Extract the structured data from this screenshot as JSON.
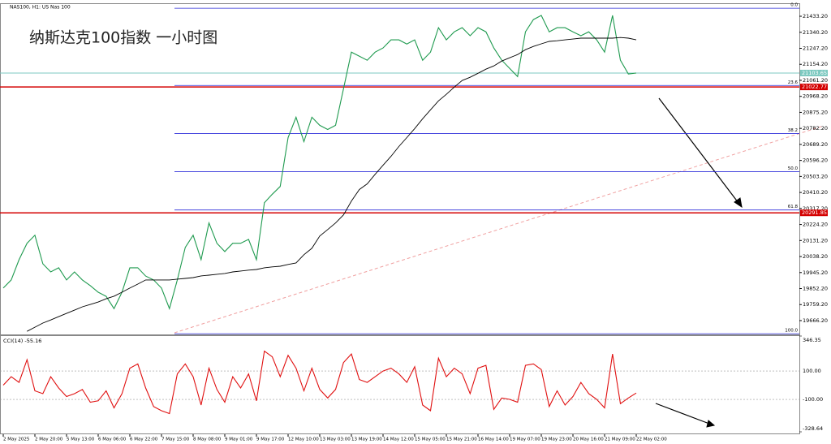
{
  "header": "NAS100, H1: US Nas 100",
  "annotation": "纳斯达克100指数 一小时图",
  "chart_data": [
    {
      "type": "line",
      "categories": [
        "2 May 2025",
        null,
        null,
        null,
        "2 May 20:00",
        null,
        null,
        null,
        "5 May 13:00",
        null,
        null,
        null,
        "6 May 06:00",
        null,
        null,
        null,
        "6 May 22:00",
        null,
        null,
        null,
        "7 May 15:00",
        null,
        null,
        null,
        "8 May 08:00",
        null,
        null,
        null,
        "9 May 01:00",
        null,
        null,
        null,
        "9 May 17:00",
        null,
        null,
        null,
        "12 May 10:00",
        null,
        null,
        null,
        "13 May 03:00",
        null,
        null,
        null,
        "13 May 19:00",
        null,
        null,
        null,
        "14 May 12:00",
        null,
        null,
        null,
        "15 May 05:00",
        null,
        null,
        null,
        "15 May 21:00",
        null,
        null,
        null,
        "16 May 14:00",
        null,
        null,
        null,
        "19 May 07:00",
        null,
        null,
        null,
        "19 May 23:00",
        null,
        null,
        null,
        "20 May 16:00",
        null,
        null,
        null,
        "21 May 09:00",
        null,
        null,
        null,
        "22 May 02:00"
      ],
      "series": [
        {
          "color": "#1f9a4f",
          "values": [
            19855,
            19902,
            20020,
            20115,
            20162,
            19996,
            19949,
            19973,
            19902,
            19949,
            19902,
            19869,
            19831,
            19807,
            19736,
            19831,
            19973,
            19973,
            19925,
            19902,
            19855,
            19736,
            19902,
            20091,
            20162,
            20020,
            20233,
            20115,
            20067,
            20115,
            20115,
            20138,
            20020,
            20351,
            20400,
            20445,
            20729,
            20847,
            20705,
            20847,
            20800,
            20776,
            20800,
            21013,
            21225,
            21201,
            21178,
            21225,
            21249,
            21296,
            21296,
            21272,
            21296,
            21178,
            21225,
            21367,
            21296,
            21343,
            21367,
            21320,
            21367,
            21343,
            21249,
            21178,
            21131,
            21083,
            21343,
            21414,
            21438,
            21343,
            21367,
            21367,
            21343,
            21320,
            21343,
            21296,
            21225,
            21438,
            21178,
            21098,
            21103.65
          ]
        },
        {
          "color": "#000000",
          "values": [
            null,
            null,
            null,
            19604,
            19628,
            19652,
            19670,
            19689,
            19708,
            19727,
            19746,
            19760,
            19774,
            19793,
            19808,
            19831,
            19855,
            19878,
            19902,
            19902,
            19902,
            19902,
            19907,
            19911,
            19916,
            19926,
            19930,
            19935,
            19940,
            19949,
            19954,
            19959,
            19963,
            19973,
            19978,
            19982,
            19992,
            20001,
            20049,
            20086,
            20157,
            20195,
            20233,
            20280,
            20360,
            20427,
            20460,
            20516,
            20568,
            20620,
            20677,
            20729,
            20781,
            20838,
            20890,
            20942,
            20980,
            21022,
            21060,
            21079,
            21102,
            21126,
            21145,
            21173,
            21192,
            21211,
            21239,
            21258,
            21273,
            21287,
            21291,
            21296,
            21301,
            21306,
            21306,
            21306,
            21306,
            21306,
            21310,
            21306,
            21296
          ]
        }
      ],
      "ylim": [
        19586,
        21504
      ],
      "yticks": [
        {
          "value": 21433.2,
          "label": "21433.20"
        },
        {
          "value": 21340.2,
          "label": "21340.20"
        },
        {
          "value": 21247.2,
          "label": "21247.20"
        },
        {
          "value": 21154.2,
          "label": "21154.20"
        },
        {
          "value": 21061.2,
          "label": "21061.20"
        },
        {
          "value": 20968.2,
          "label": "20968.20"
        },
        {
          "value": 20875.2,
          "label": "20875.20"
        },
        {
          "value": 20782.2,
          "label": "20782.20"
        },
        {
          "value": 20689.2,
          "label": "20689.20"
        },
        {
          "value": 20596.2,
          "label": "20596.20"
        },
        {
          "value": 20503.2,
          "label": "20503.20"
        },
        {
          "value": 20410.2,
          "label": "20410.20"
        },
        {
          "value": 20317.2,
          "label": "20317.20"
        },
        {
          "value": 20224.2,
          "label": "20224.20"
        },
        {
          "value": 20131.2,
          "label": "20131.20"
        },
        {
          "value": 20038.2,
          "label": "20038.20"
        },
        {
          "value": 19945.2,
          "label": "19945.20"
        },
        {
          "value": 19852.2,
          "label": "19852.20"
        },
        {
          "value": 19759.2,
          "label": "19759.20"
        },
        {
          "value": 19666.2,
          "label": "19666.20"
        }
      ],
      "fib_color": "#2b2bd9",
      "fib_levels": [
        {
          "label": "0.0",
          "price": 21480
        },
        {
          "label": "23.6",
          "price": 21031.5
        },
        {
          "label": "38.2",
          "price": 20752.7
        },
        {
          "label": "50.0",
          "price": 20530.5
        },
        {
          "label": "61.8",
          "price": 20308.4
        },
        {
          "label": "100.0",
          "price": 19590
        }
      ],
      "levels": [
        {
          "price": 21103.65,
          "color": "#7cc9c0"
        },
        {
          "price": 21022.77,
          "color": "#d40000"
        },
        {
          "price": 20291.85,
          "color": "#d40000"
        }
      ]
    },
    {
      "type": "line",
      "title": "CCI(14) -55.16",
      "series": [
        {
          "color": "#e01010",
          "values": [
            0,
            60,
            20,
            180,
            -40,
            -60,
            60,
            -20,
            -80,
            -60,
            -30,
            -120,
            -110,
            -40,
            -160,
            -60,
            120,
            150,
            -20,
            -150,
            -180,
            -200,
            80,
            150,
            60,
            -140,
            120,
            -30,
            -120,
            60,
            -20,
            80,
            -110,
            240,
            200,
            60,
            210,
            120,
            -40,
            120,
            -30,
            -90,
            -30,
            160,
            220,
            40,
            20,
            60,
            100,
            120,
            80,
            20,
            130,
            -140,
            -180,
            190,
            60,
            120,
            80,
            -60,
            120,
            140,
            -170,
            -90,
            -100,
            -120,
            140,
            150,
            110,
            -150,
            -40,
            -140,
            -80,
            20,
            -60,
            -100,
            -160,
            220,
            -130,
            -90,
            -55.16
          ]
        }
      ],
      "ylim": [
        -328.64,
        346.35
      ],
      "yticks": [
        346.35,
        {
          "value": 100,
          "label": "100.00"
        },
        {
          "value": -100,
          "label": "-100.00"
        },
        -328.64
      ]
    }
  ]
}
